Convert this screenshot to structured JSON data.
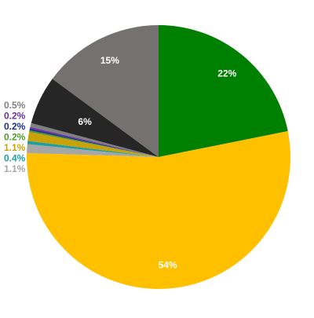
{
  "chart_data": {
    "type": "pie",
    "title": "",
    "legend": "none",
    "start_angle_deg": 0,
    "direction": "clockwise",
    "slices": [
      {
        "label": "22%",
        "value": 22,
        "color": "#008000",
        "label_position": "inside"
      },
      {
        "label": "54%",
        "value": 54,
        "color": "#FFC000",
        "label_position": "inside"
      },
      {
        "label": "1.1%",
        "value": 1.1,
        "color": "#A6A6A6",
        "label_position": "outside"
      },
      {
        "label": "0.4%",
        "value": 0.4,
        "color": "#1F9E9E",
        "label_position": "outside"
      },
      {
        "label": "1.1%",
        "value": 1.1,
        "color": "#C9A20A",
        "label_position": "outside"
      },
      {
        "label": "0.2%",
        "value": 0.2,
        "color": "#4E9A2E",
        "label_position": "outside"
      },
      {
        "label": "0.2%",
        "value": 0.2,
        "color": "#1C2E8C",
        "label_position": "outside"
      },
      {
        "label": "0.2%",
        "value": 0.2,
        "color": "#6A2FA0",
        "label_position": "outside"
      },
      {
        "label": "0.5%",
        "value": 0.5,
        "color": "#7F7F7F",
        "label_position": "outside"
      },
      {
        "label": "6%",
        "value": 6,
        "color": "#262626",
        "label_position": "inside"
      },
      {
        "label": "15%",
        "value": 15,
        "color": "#767171",
        "label_position": "inside"
      }
    ]
  }
}
